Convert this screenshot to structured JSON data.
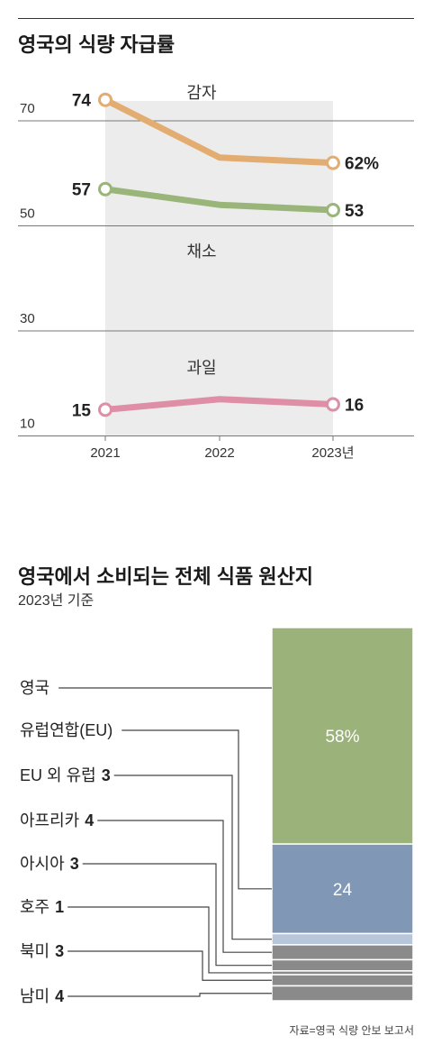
{
  "chart1": {
    "title": "영국의 식량 자급률",
    "chart_data": {
      "type": "line",
      "x": [
        "2021",
        "2022",
        "2023년"
      ],
      "ylim": [
        10,
        80
      ],
      "yticks": [
        "70",
        "50",
        "30",
        "10"
      ],
      "grid": true,
      "series": [
        {
          "name": "감자",
          "values": [
            74,
            63,
            62
          ],
          "color": "#e3ad72",
          "start_label": "74",
          "end_label": "62%"
        },
        {
          "name": "채소",
          "values": [
            57,
            54,
            53
          ],
          "color": "#9ab57a",
          "start_label": "57",
          "end_label": "53"
        },
        {
          "name": "과일",
          "values": [
            15,
            17,
            16
          ],
          "color": "#de8ea5",
          "start_label": "15",
          "end_label": "16"
        }
      ]
    }
  },
  "chart2": {
    "title": "영국에서 소비되는 전체 식품 원산지",
    "subtitle": "2023년 기준",
    "chart_data": {
      "type": "bar",
      "stacked": true,
      "categories": [
        "영국",
        "유럽연합(EU)",
        "EU 외 유럽",
        "아프리카",
        "아시아",
        "호주",
        "북미",
        "남미"
      ],
      "values": [
        58,
        24,
        3,
        4,
        3,
        1,
        3,
        4
      ],
      "value_labels": [
        "58%",
        "24",
        "3",
        "4",
        "3",
        "1",
        "3",
        "4"
      ],
      "colors": [
        "#9bb27b",
        "#8097b6",
        "#b7c6da",
        "#8a8a8a",
        "#8a8a8a",
        "#8a8a8a",
        "#8a8a8a",
        "#8a8a8a"
      ]
    }
  },
  "source": "자료=영국 식량 안보 보고서"
}
